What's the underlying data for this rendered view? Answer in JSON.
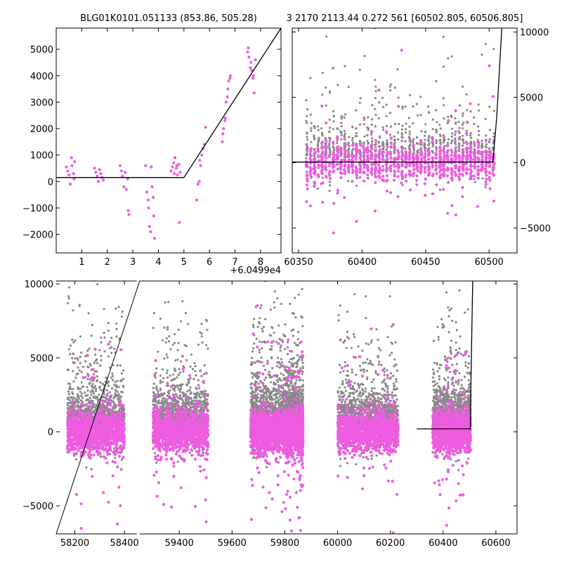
{
  "titles": {
    "left": "BLG01K0101.051133 (853.86, 505.28)",
    "right": "3 2170 2113.44 0.272 561 [60502.805, 60506.805]"
  },
  "colors": {
    "gray": "#888888",
    "magenta": "#ee5ce0",
    "model": "#000000"
  },
  "chart_data": [
    {
      "type": "scatter",
      "panel": "top-left",
      "x_offset_label": "+6.0499e4",
      "xlim": [
        0.0,
        8.8
      ],
      "ylim": [
        -2700,
        5800
      ],
      "x_ticks": [
        1,
        2,
        3,
        4,
        5,
        6,
        7,
        8
      ],
      "x_tick_labels": [
        "1",
        "2",
        "3",
        "4",
        "5",
        "6",
        "7",
        "8"
      ],
      "y_ticks": [
        -2000,
        -1000,
        0,
        1000,
        2000,
        3000,
        4000,
        5000
      ],
      "y_tick_labels": [
        "−2000",
        "−1000",
        "0",
        "1000",
        "2000",
        "3000",
        "4000",
        "5000"
      ],
      "y_axis_side": "left",
      "model_line": {
        "x": [
          0.0,
          5.0,
          8.8
        ],
        "y": [
          150,
          150,
          5800
        ]
      },
      "series": [
        {
          "color": "magenta",
          "x": [
            0.4,
            0.45,
            0.5,
            0.55,
            0.6,
            0.62,
            0.68,
            0.7,
            0.72,
            1.5,
            1.55,
            1.6,
            1.65,
            1.7,
            1.75,
            1.8,
            1.85,
            2.5,
            2.55,
            2.6,
            2.65,
            2.7,
            2.75,
            2.8,
            2.82,
            2.85,
            3.5,
            3.55,
            3.6,
            3.62,
            3.65,
            3.7,
            3.72,
            3.75,
            3.8,
            3.82,
            3.85,
            4.5,
            4.55,
            4.6,
            4.62,
            4.65,
            4.7,
            4.72,
            4.75,
            4.8,
            4.82,
            4.85,
            5.5,
            5.55,
            5.6,
            5.62,
            5.65,
            5.7,
            5.75,
            5.8,
            5.85,
            6.5,
            6.52,
            6.55,
            6.6,
            6.62,
            6.65,
            6.7,
            6.72,
            6.75,
            6.8,
            6.82,
            7.5,
            7.52,
            7.55,
            7.6,
            7.62,
            7.65,
            7.7,
            7.72,
            7.75,
            7.8
          ],
          "y": [
            550,
            400,
            250,
            -100,
            900,
            600,
            300,
            100,
            750,
            500,
            350,
            200,
            0,
            450,
            300,
            150,
            50,
            600,
            400,
            200,
            -200,
            350,
            -300,
            100,
            -1100,
            -1250,
            600,
            -400,
            -700,
            -1000,
            -1700,
            -1900,
            550,
            -200,
            -600,
            -1300,
            -2150,
            400,
            550,
            700,
            300,
            900,
            500,
            600,
            250,
            650,
            -1550,
            350,
            -700,
            -100,
            0,
            800,
            600,
            1000,
            1250,
            1400,
            2050,
            1500,
            1800,
            2000,
            2300,
            2400,
            3000,
            3200,
            3500,
            3800,
            3900,
            4000,
            4900,
            5050,
            4700,
            4300,
            4500,
            4200,
            3900,
            4000,
            3350,
            4600
          ]
        }
      ]
    },
    {
      "type": "scatter",
      "panel": "top-right",
      "xlim": [
        60345,
        60522
      ],
      "ylim": [
        -6900,
        10300
      ],
      "x_ticks": [
        60350,
        60400,
        60450,
        60500
      ],
      "x_tick_labels": [
        "60350",
        "60400",
        "60450",
        "60500"
      ],
      "y_ticks": [
        -5000,
        0,
        5000,
        10000
      ],
      "y_tick_labels": [
        "−5000",
        "0",
        "5000",
        "10000"
      ],
      "y_axis_side": "right",
      "model_line": {
        "x": [
          60345,
          60503,
          60506,
          60510
        ],
        "y": [
          50,
          50,
          3500,
          10300
        ]
      },
      "series": [
        {
          "color": "gray",
          "generated": "dense nightly scatter around baseline with upward tail",
          "x_range": [
            60355,
            60505
          ],
          "seeds": 11
        },
        {
          "color": "magenta",
          "generated": "dense nightly scatter around baseline",
          "x_range": [
            60355,
            60505
          ],
          "seeds": 23
        }
      ]
    },
    {
      "type": "scatter",
      "panel": "bottom",
      "xlim": [
        58125,
        60680
      ],
      "ylim": [
        -6900,
        10200
      ],
      "x_ticks": [
        58200,
        58400,
        59400,
        59600,
        59800,
        60000,
        60200,
        60400,
        60600
      ],
      "x_tick_labels": [
        "58200",
        "58400",
        "59400",
        "59600",
        "59800",
        "60000",
        "60200",
        "60400",
        "60600"
      ],
      "y_ticks": [
        -5000,
        0,
        5000,
        10000
      ],
      "y_tick_labels": [
        "−5000",
        "0",
        "5000",
        "10000"
      ],
      "y_axis_side": "left",
      "axis_break": {
        "from": 58450,
        "to": 59250
      },
      "seasons": [
        [
          58170,
          58400
        ],
        [
          59300,
          59510
        ],
        [
          59670,
          59800
        ],
        [
          59800,
          59870
        ],
        [
          60000,
          60230
        ],
        [
          60360,
          60505
        ]
      ],
      "model_line": {
        "x": [
          60300,
          60503,
          60506,
          60512
        ],
        "y": [
          200,
          200,
          4000,
          10200
        ]
      },
      "series": [
        {
          "color": "gray",
          "generated": "seasonal dense scatter"
        },
        {
          "color": "magenta",
          "generated": "seasonal dense scatter"
        }
      ]
    }
  ]
}
